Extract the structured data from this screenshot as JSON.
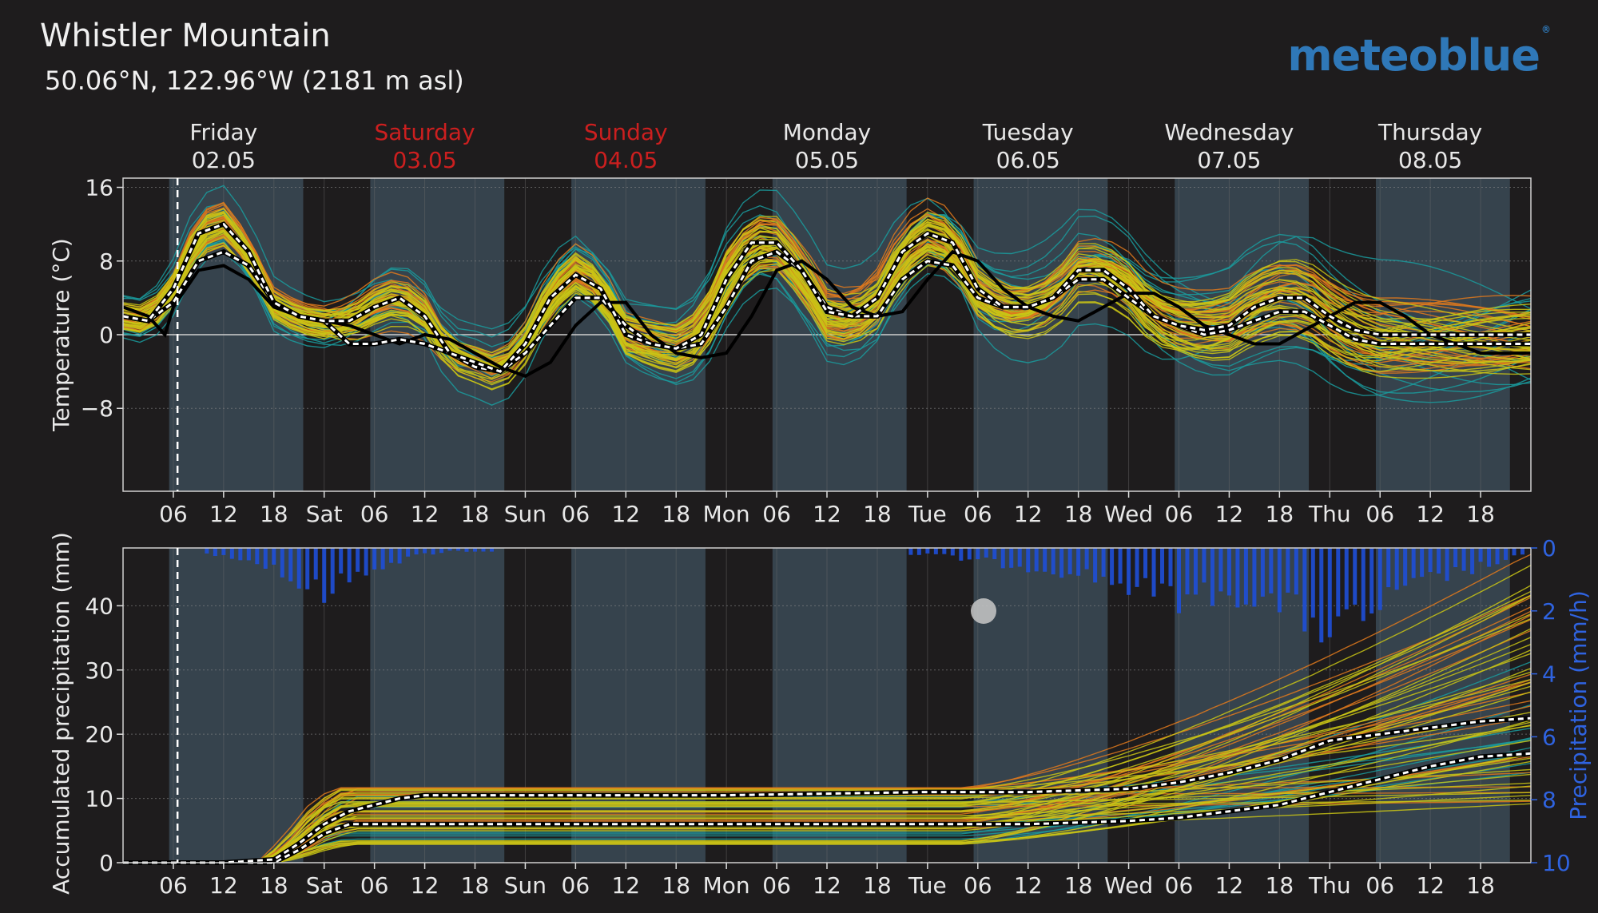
{
  "header": {
    "title": "Whistler Mountain",
    "subtitle": "50.06°N, 122.96°W (2181 m asl)",
    "logo": "meteoblue"
  },
  "colors": {
    "background": "#1e1c1d",
    "daylight": "#36434d",
    "weekend": "#cc1f1f",
    "precip_bar": "#1e4fd8",
    "precip_axis": "#2f63e0",
    "member_teal": "#1a9b9e",
    "member_yellow": "#c9c415",
    "member_orange": "#e0791c",
    "median_white": "#ffffff",
    "control_black": "#000000"
  },
  "chart_data": [
    {
      "type": "line",
      "title": "",
      "ylabel": "Temperature (°C)",
      "ylim": [
        -17,
        17
      ],
      "yticks": [
        "16",
        "8",
        "0",
        "−8"
      ],
      "days": [
        {
          "name": "Friday",
          "date": "02.05",
          "weekend": false
        },
        {
          "name": "Saturday",
          "date": "03.05",
          "weekend": true
        },
        {
          "name": "Sunday",
          "date": "04.05",
          "weekend": true
        },
        {
          "name": "Monday",
          "date": "05.05",
          "weekend": false
        },
        {
          "name": "Tuesday",
          "date": "06.05",
          "weekend": false
        },
        {
          "name": "Wednesday",
          "date": "07.05",
          "weekend": false
        },
        {
          "name": "Thursday",
          "date": "08.05",
          "weekend": false
        }
      ],
      "xtick_labels": [
        "06",
        "12",
        "18",
        "Sat",
        "06",
        "12",
        "18",
        "Sun",
        "06",
        "12",
        "18",
        "Mon",
        "06",
        "12",
        "18",
        "Tue",
        "06",
        "12",
        "18",
        "Wed",
        "06",
        "12",
        "18",
        "Thu",
        "06",
        "12",
        "18"
      ],
      "xrange_hours": [
        0,
        168
      ],
      "now_hour": 6.5,
      "series": [
        {
          "kind": "control",
          "hours": [
            0,
            3,
            5,
            6,
            9,
            12,
            15,
            18,
            21,
            24,
            27,
            30,
            33,
            36,
            39,
            42,
            45,
            48,
            51,
            54,
            57,
            60,
            63,
            66,
            69,
            72,
            75,
            78,
            81,
            84,
            87,
            90,
            93,
            96,
            99,
            102,
            105,
            108,
            111,
            114,
            117,
            120,
            123,
            126,
            129,
            132,
            135,
            138,
            141,
            144,
            147,
            150,
            153,
            156,
            159,
            162,
            165,
            168
          ],
          "values": [
            3,
            2,
            0,
            3,
            7,
            7.5,
            6,
            3,
            2,
            1.5,
            1,
            0,
            -1,
            0,
            -0.5,
            -2,
            -3.5,
            -4.5,
            -3,
            1,
            3.5,
            3.5,
            0,
            -2,
            -2.5,
            -2,
            2,
            7,
            8,
            6,
            3,
            2,
            2.5,
            6,
            9,
            8,
            5,
            3,
            2,
            1.5,
            3,
            4.5,
            4.5,
            3,
            1,
            0,
            -1,
            -1,
            0.5,
            2,
            3.5,
            3.5,
            2,
            0,
            -1,
            -2,
            -2,
            -2
          ]
        },
        {
          "kind": "median",
          "hours": [
            0,
            3,
            6,
            9,
            12,
            15,
            18,
            21,
            24,
            27,
            30,
            33,
            36,
            39,
            42,
            45,
            48,
            51,
            54,
            57,
            60,
            63,
            66,
            69,
            72,
            75,
            78,
            81,
            84,
            87,
            90,
            93,
            96,
            99,
            102,
            105,
            108,
            111,
            114,
            117,
            120,
            123,
            126,
            129,
            132,
            135,
            138,
            141,
            144,
            147,
            150,
            153,
            156,
            159,
            162,
            165,
            168
          ],
          "values": [
            2,
            1.5,
            3.5,
            8,
            9,
            7.5,
            3.5,
            2,
            1.5,
            -1,
            -1,
            -0.5,
            -1,
            -2,
            -3.5,
            -4,
            -2,
            1,
            4,
            4,
            1,
            -1,
            -1.5,
            -1,
            3,
            8,
            9,
            7,
            3,
            2,
            2,
            6,
            8,
            7.5,
            4,
            3,
            3,
            4,
            6,
            6,
            4,
            2,
            1,
            0,
            0.5,
            1.5,
            2.5,
            2.5,
            1,
            -0.5,
            -1,
            -1,
            -1,
            -1,
            -1,
            -1,
            -1
          ]
        },
        {
          "kind": "mean",
          "hours": [
            0,
            3,
            6,
            9,
            12,
            15,
            18,
            21,
            24,
            27,
            30,
            33,
            36,
            39,
            42,
            45,
            48,
            51,
            54,
            57,
            60,
            63,
            66,
            69,
            72,
            75,
            78,
            81,
            84,
            87,
            90,
            93,
            96,
            99,
            102,
            105,
            108,
            111,
            114,
            117,
            120,
            123,
            126,
            129,
            132,
            135,
            138,
            141,
            144,
            147,
            150,
            153,
            156,
            159,
            162,
            165,
            168
          ],
          "values": [
            2,
            1.5,
            5,
            11,
            12,
            9,
            3.5,
            2,
            1.5,
            1.5,
            3,
            4,
            2,
            -2,
            -3,
            -4,
            -1,
            4,
            6.5,
            5,
            0,
            -1,
            -1.5,
            0,
            6,
            10,
            10,
            7,
            2.5,
            2,
            4,
            9,
            11,
            10,
            5,
            3,
            3,
            4,
            7,
            7,
            5,
            2,
            1,
            0.5,
            1,
            3,
            4,
            4,
            2,
            0.5,
            0,
            0,
            0,
            0,
            0,
            0,
            0
          ]
        }
      ]
    },
    {
      "type": "line",
      "title": "",
      "ylabel": "Accumulated precipitation (mm)",
      "ylim": [
        0,
        49
      ],
      "yticks": [
        "0",
        "10",
        "20",
        "30",
        "40"
      ],
      "y2label": "Precipitation (mm/h)",
      "y2ticks": [
        "0",
        "2",
        "4",
        "6",
        "8",
        "10"
      ],
      "y2lim": [
        0,
        10
      ],
      "xtick_labels": [
        "06",
        "12",
        "18",
        "Sat",
        "06",
        "12",
        "18",
        "Sun",
        "06",
        "12",
        "18",
        "Mon",
        "06",
        "12",
        "18",
        "Tue",
        "06",
        "12",
        "18",
        "Wed",
        "06",
        "12",
        "18",
        "Thu",
        "06",
        "12",
        "18"
      ],
      "series": [
        {
          "kind": "median",
          "hours": [
            0,
            12,
            18,
            21,
            24,
            27,
            30,
            33,
            36,
            42,
            48,
            72,
            96,
            108,
            120,
            126,
            132,
            138,
            144,
            150,
            156,
            162,
            168
          ],
          "values": [
            0,
            0,
            0,
            2,
            4.5,
            6,
            6,
            6,
            6,
            6,
            6,
            6,
            6,
            6,
            6.5,
            7,
            8,
            9,
            11,
            13,
            15,
            16.5,
            17
          ]
        },
        {
          "kind": "mean",
          "hours": [
            0,
            12,
            18,
            21,
            24,
            27,
            30,
            33,
            36,
            42,
            48,
            72,
            96,
            108,
            120,
            126,
            132,
            138,
            144,
            150,
            156,
            162,
            168
          ],
          "values": [
            0,
            0,
            0.5,
            3,
            6,
            8,
            9,
            10,
            10.5,
            10.5,
            10.5,
            10.5,
            11,
            11,
            11.5,
            12.5,
            14,
            16,
            19,
            20,
            21,
            22,
            22.5
          ]
        }
      ],
      "hourly_precip_mm_h": {
        "hours": [
          12,
          18,
          21,
          24,
          27,
          30,
          33,
          36,
          39,
          42,
          96,
          102,
          108,
          114,
          120,
          126,
          132,
          138,
          141,
          144,
          147,
          150,
          153,
          156,
          159,
          162,
          165,
          168
        ],
        "values": [
          0.2,
          0.6,
          1.2,
          1.4,
          1.0,
          0.6,
          0.4,
          0.2,
          0.1,
          0.1,
          0.2,
          0.4,
          0.6,
          0.8,
          1.2,
          1.6,
          1.4,
          1.8,
          2.2,
          2.6,
          2.4,
          1.8,
          1.4,
          1.0,
          0.8,
          0.6,
          0.4,
          0.2
        ]
      }
    }
  ]
}
